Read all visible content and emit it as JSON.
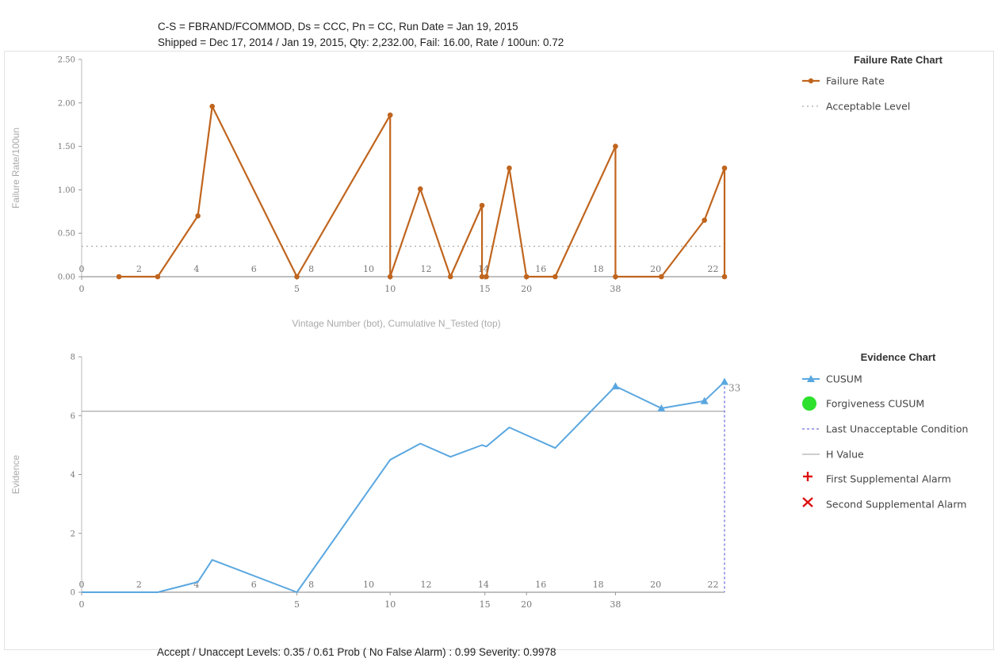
{
  "header": {
    "line1": "C-S = FBRAND/FCOMMOD,  Ds = CCC,  Pn = CC,  Run Date = Jan 19, 2015",
    "line2": "Shipped = Dec 17, 2014 / Jan 19, 2015,  Qty: 2,232.00,  Fail: 16.00,  Rate / 100un: 0.72"
  },
  "footer": "Accept / Unaccept Levels:  0.35 / 0.61   Prob ( No False Alarm) : 0.99   Severity: 0.9978",
  "colors": {
    "failure_rate": "#c0651e",
    "cusum": "#5aa7e0",
    "h_value": "#b0b0b0",
    "acceptable": "#aaaaaa",
    "last_unacceptable": "#6f6fdc",
    "forgiveness": "#2ee02e",
    "alarm": "#dd1111"
  },
  "chart_data": [
    {
      "type": "line",
      "title": "Failure Rate Chart",
      "xlabel": "Vintage Number (bot), Cumulative N_Tested (top)",
      "ylabel": "Failure Rate/100un",
      "xlim": [
        0,
        22.4
      ],
      "ylim": [
        0,
        2.5
      ],
      "yticks": [
        "0.00",
        "0.50",
        "1.00",
        "1.50",
        "2.00",
        "2.50"
      ],
      "top_ticks": [
        {
          "x": 0,
          "label": "0"
        },
        {
          "x": 2,
          "label": "2"
        },
        {
          "x": 4,
          "label": "4"
        },
        {
          "x": 6,
          "label": "6"
        },
        {
          "x": 8,
          "label": "8"
        },
        {
          "x": 10,
          "label": "10"
        },
        {
          "x": 12,
          "label": "12"
        },
        {
          "x": 14,
          "label": "14"
        },
        {
          "x": 16,
          "label": "16"
        },
        {
          "x": 18,
          "label": "18"
        },
        {
          "x": 20,
          "label": "20"
        },
        {
          "x": 22,
          "label": "22"
        }
      ],
      "bottom_ticks": [
        {
          "x": 0,
          "label": "0"
        },
        {
          "x": 7.5,
          "label": "5"
        },
        {
          "x": 10.75,
          "label": "10"
        },
        {
          "x": 14.05,
          "label": "15"
        },
        {
          "x": 15.5,
          "label": "20"
        },
        {
          "x": 18.6,
          "label": "38"
        }
      ],
      "legend": [
        "Failure Rate",
        "Acceptable Level"
      ],
      "legend_position": "right",
      "acceptable_level": 0.35,
      "series": [
        {
          "name": "Failure Rate",
          "points": [
            {
              "x": 1.3,
              "y": 0
            },
            {
              "x": 2.65,
              "y": 0
            },
            {
              "x": 4.05,
              "y": 0.7
            },
            {
              "x": 4.55,
              "y": 1.96
            },
            {
              "x": 7.5,
              "y": 0
            },
            {
              "x": 10.75,
              "y": 1.86
            },
            {
              "x": 10.75,
              "y": 0
            },
            {
              "x": 11.8,
              "y": 1.01
            },
            {
              "x": 12.85,
              "y": 0
            },
            {
              "x": 13.95,
              "y": 0.82
            },
            {
              "x": 13.95,
              "y": 0
            },
            {
              "x": 14.1,
              "y": 0
            },
            {
              "x": 14.9,
              "y": 1.25
            },
            {
              "x": 15.5,
              "y": 0
            },
            {
              "x": 16.5,
              "y": 0
            },
            {
              "x": 18.6,
              "y": 1.5
            },
            {
              "x": 18.6,
              "y": 0
            },
            {
              "x": 20.2,
              "y": 0
            },
            {
              "x": 21.7,
              "y": 0.65
            },
            {
              "x": 22.4,
              "y": 1.25
            },
            {
              "x": 22.4,
              "y": 0
            }
          ]
        }
      ]
    },
    {
      "type": "line",
      "title": "Evidence Chart",
      "xlabel": "",
      "ylabel": "Evidence",
      "xlim": [
        0,
        22.4
      ],
      "ylim": [
        0,
        8
      ],
      "yticks": [
        "0",
        "2",
        "4",
        "6",
        "8"
      ],
      "top_ticks": [
        {
          "x": 0,
          "label": "0"
        },
        {
          "x": 2,
          "label": "2"
        },
        {
          "x": 4,
          "label": "4"
        },
        {
          "x": 6,
          "label": "6"
        },
        {
          "x": 8,
          "label": "8"
        },
        {
          "x": 10,
          "label": "10"
        },
        {
          "x": 12,
          "label": "12"
        },
        {
          "x": 14,
          "label": "14"
        },
        {
          "x": 16,
          "label": "16"
        },
        {
          "x": 18,
          "label": "18"
        },
        {
          "x": 20,
          "label": "20"
        },
        {
          "x": 22,
          "label": "22"
        }
      ],
      "bottom_ticks": [
        {
          "x": 0,
          "label": "0"
        },
        {
          "x": 7.5,
          "label": "5"
        },
        {
          "x": 10.75,
          "label": "10"
        },
        {
          "x": 14.05,
          "label": "15"
        },
        {
          "x": 15.5,
          "label": "20"
        },
        {
          "x": 18.6,
          "label": "38"
        }
      ],
      "legend": [
        "CUSUM",
        "Forgiveness CUSUM",
        "Last Unacceptable Condition",
        "H Value",
        "First Supplemental Alarm",
        "Second Supplemental Alarm"
      ],
      "legend_position": "right",
      "h_value": 6.15,
      "last_unacceptable_x": 22.4,
      "annotation": {
        "x": 22.4,
        "y": 7.1,
        "text": "33"
      },
      "series": [
        {
          "name": "CUSUM",
          "points": [
            {
              "x": 0,
              "y": 0
            },
            {
              "x": 2.65,
              "y": 0
            },
            {
              "x": 4.05,
              "y": 0.35
            },
            {
              "x": 4.55,
              "y": 1.1
            },
            {
              "x": 7.5,
              "y": 0
            },
            {
              "x": 10.75,
              "y": 4.5
            },
            {
              "x": 11.8,
              "y": 5.05
            },
            {
              "x": 12.85,
              "y": 4.6
            },
            {
              "x": 13.95,
              "y": 5.0
            },
            {
              "x": 14.1,
              "y": 4.95
            },
            {
              "x": 14.9,
              "y": 5.6
            },
            {
              "x": 16.5,
              "y": 4.9
            },
            {
              "x": 18.6,
              "y": 7.0
            },
            {
              "x": 20.2,
              "y": 6.25
            },
            {
              "x": 21.7,
              "y": 6.5
            },
            {
              "x": 22.4,
              "y": 7.15
            }
          ],
          "marker_x": [
            18.6,
            20.2,
            21.7,
            22.4
          ]
        }
      ]
    }
  ]
}
